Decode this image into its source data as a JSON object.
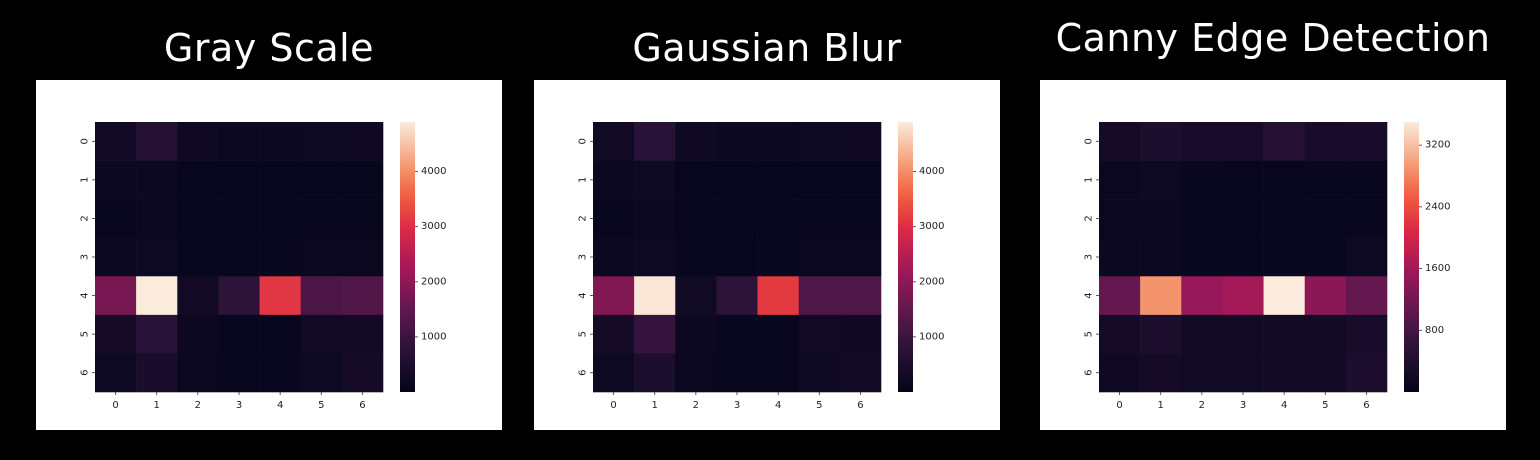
{
  "titles": [
    "Gray Scale",
    "Gaussian Blur",
    "Canny Edge Detection"
  ],
  "chart_data": [
    {
      "type": "heatmap",
      "title": "Gray Scale",
      "x_categories": [
        "0",
        "1",
        "2",
        "3",
        "4",
        "5",
        "6"
      ],
      "y_categories": [
        "0",
        "1",
        "2",
        "3",
        "4",
        "5",
        "6"
      ],
      "vmin": 0,
      "vmax": 4900,
      "colorbar_ticks": [
        1000,
        2000,
        3000,
        4000
      ],
      "colormap": "rocket",
      "values": [
        [
          300,
          650,
          250,
          150,
          180,
          220,
          230
        ],
        [
          150,
          180,
          80,
          80,
          80,
          120,
          110
        ],
        [
          120,
          160,
          80,
          70,
          80,
          110,
          100
        ],
        [
          150,
          200,
          90,
          80,
          90,
          130,
          140
        ],
        [
          1750,
          4900,
          300,
          800,
          3100,
          1200,
          1300
        ],
        [
          350,
          750,
          180,
          120,
          110,
          300,
          280
        ],
        [
          200,
          450,
          130,
          100,
          120,
          220,
          350
        ]
      ]
    },
    {
      "type": "heatmap",
      "title": "Gaussian Blur",
      "x_categories": [
        "0",
        "1",
        "2",
        "3",
        "4",
        "5",
        "6"
      ],
      "y_categories": [
        "0",
        "1",
        "2",
        "3",
        "4",
        "5",
        "6"
      ],
      "vmin": 0,
      "vmax": 4900,
      "colorbar_ticks": [
        1000,
        2000,
        3000,
        4000
      ],
      "colormap": "rocket",
      "values": [
        [
          280,
          750,
          250,
          150,
          180,
          220,
          230
        ],
        [
          150,
          200,
          80,
          80,
          80,
          110,
          110
        ],
        [
          120,
          170,
          80,
          70,
          80,
          110,
          100
        ],
        [
          150,
          200,
          90,
          80,
          90,
          130,
          140
        ],
        [
          1850,
          4850,
          280,
          800,
          3150,
          1250,
          1250
        ],
        [
          350,
          900,
          180,
          120,
          110,
          280,
          250
        ],
        [
          200,
          500,
          130,
          100,
          110,
          210,
          300
        ]
      ]
    },
    {
      "type": "heatmap",
      "title": "Canny Edge Detection",
      "x_categories": [
        "0",
        "1",
        "2",
        "3",
        "4",
        "5",
        "6"
      ],
      "y_categories": [
        "0",
        "1",
        "2",
        "3",
        "4",
        "5",
        "6"
      ],
      "vmin": 0,
      "vmax": 3500,
      "colorbar_ticks": [
        800,
        1600,
        2400,
        3200
      ],
      "colormap": "rocket",
      "values": [
        [
          250,
          350,
          300,
          300,
          450,
          300,
          330
        ],
        [
          100,
          150,
          70,
          60,
          60,
          80,
          80
        ],
        [
          100,
          120,
          60,
          60,
          60,
          70,
          70
        ],
        [
          120,
          130,
          70,
          60,
          70,
          80,
          150
        ],
        [
          1100,
          2900,
          1500,
          1600,
          3500,
          1400,
          1100
        ],
        [
          250,
          380,
          220,
          200,
          230,
          220,
          300
        ],
        [
          180,
          250,
          190,
          190,
          210,
          220,
          380
        ]
      ]
    }
  ]
}
